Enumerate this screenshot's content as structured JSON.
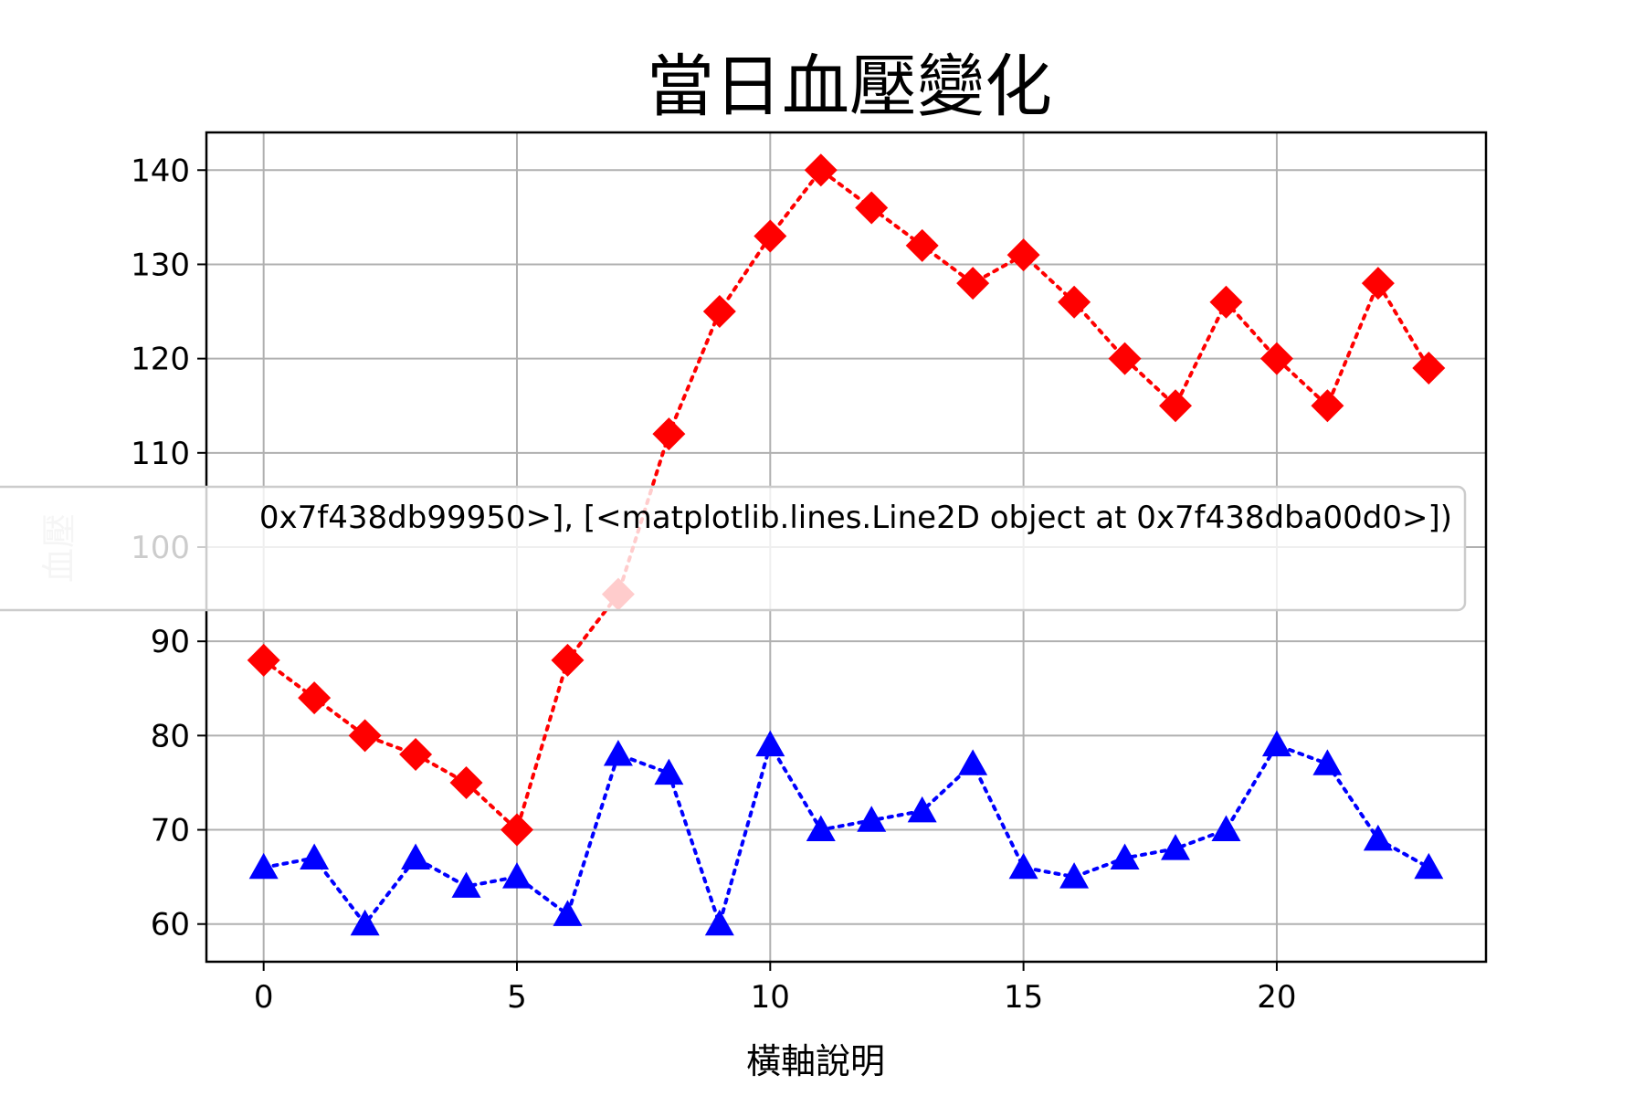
{
  "chart_data": {
    "type": "line",
    "title": "當日血壓變化",
    "xlabel": "橫軸說明",
    "ylabel": "血壓",
    "xlim": [
      -1.13,
      24.13
    ],
    "ylim": [
      56,
      144
    ],
    "xticks": [
      0,
      5,
      10,
      15,
      20
    ],
    "yticks": [
      60,
      70,
      80,
      90,
      100,
      110,
      120,
      130,
      140
    ],
    "grid": true,
    "x": [
      0,
      1,
      2,
      3,
      4,
      5,
      6,
      7,
      8,
      9,
      10,
      11,
      12,
      13,
      14,
      15,
      16,
      17,
      18,
      19,
      20,
      21,
      22,
      23
    ],
    "series": [
      {
        "color": "#ff0000",
        "marker": "diamond",
        "linestyle": "dotted",
        "values": [
          88,
          84,
          80,
          78,
          75,
          70,
          88,
          95,
          112,
          125,
          133,
          140,
          136,
          132,
          128,
          131,
          126,
          120,
          115,
          126,
          120,
          115,
          128,
          119
        ]
      },
      {
        "color": "#0000ff",
        "marker": "triangle",
        "linestyle": "dotted",
        "values": [
          66,
          67,
          60,
          67,
          64,
          65,
          61,
          78,
          76,
          60,
          79,
          70,
          71,
          72,
          77,
          66,
          65,
          67,
          68,
          70,
          79,
          77,
          69,
          66
        ]
      }
    ],
    "legend": {
      "placement": "center",
      "text": "0x7f438db99950>], [<matplotlib.lines.Line2D object at 0x7f438dba00d0>])"
    }
  }
}
